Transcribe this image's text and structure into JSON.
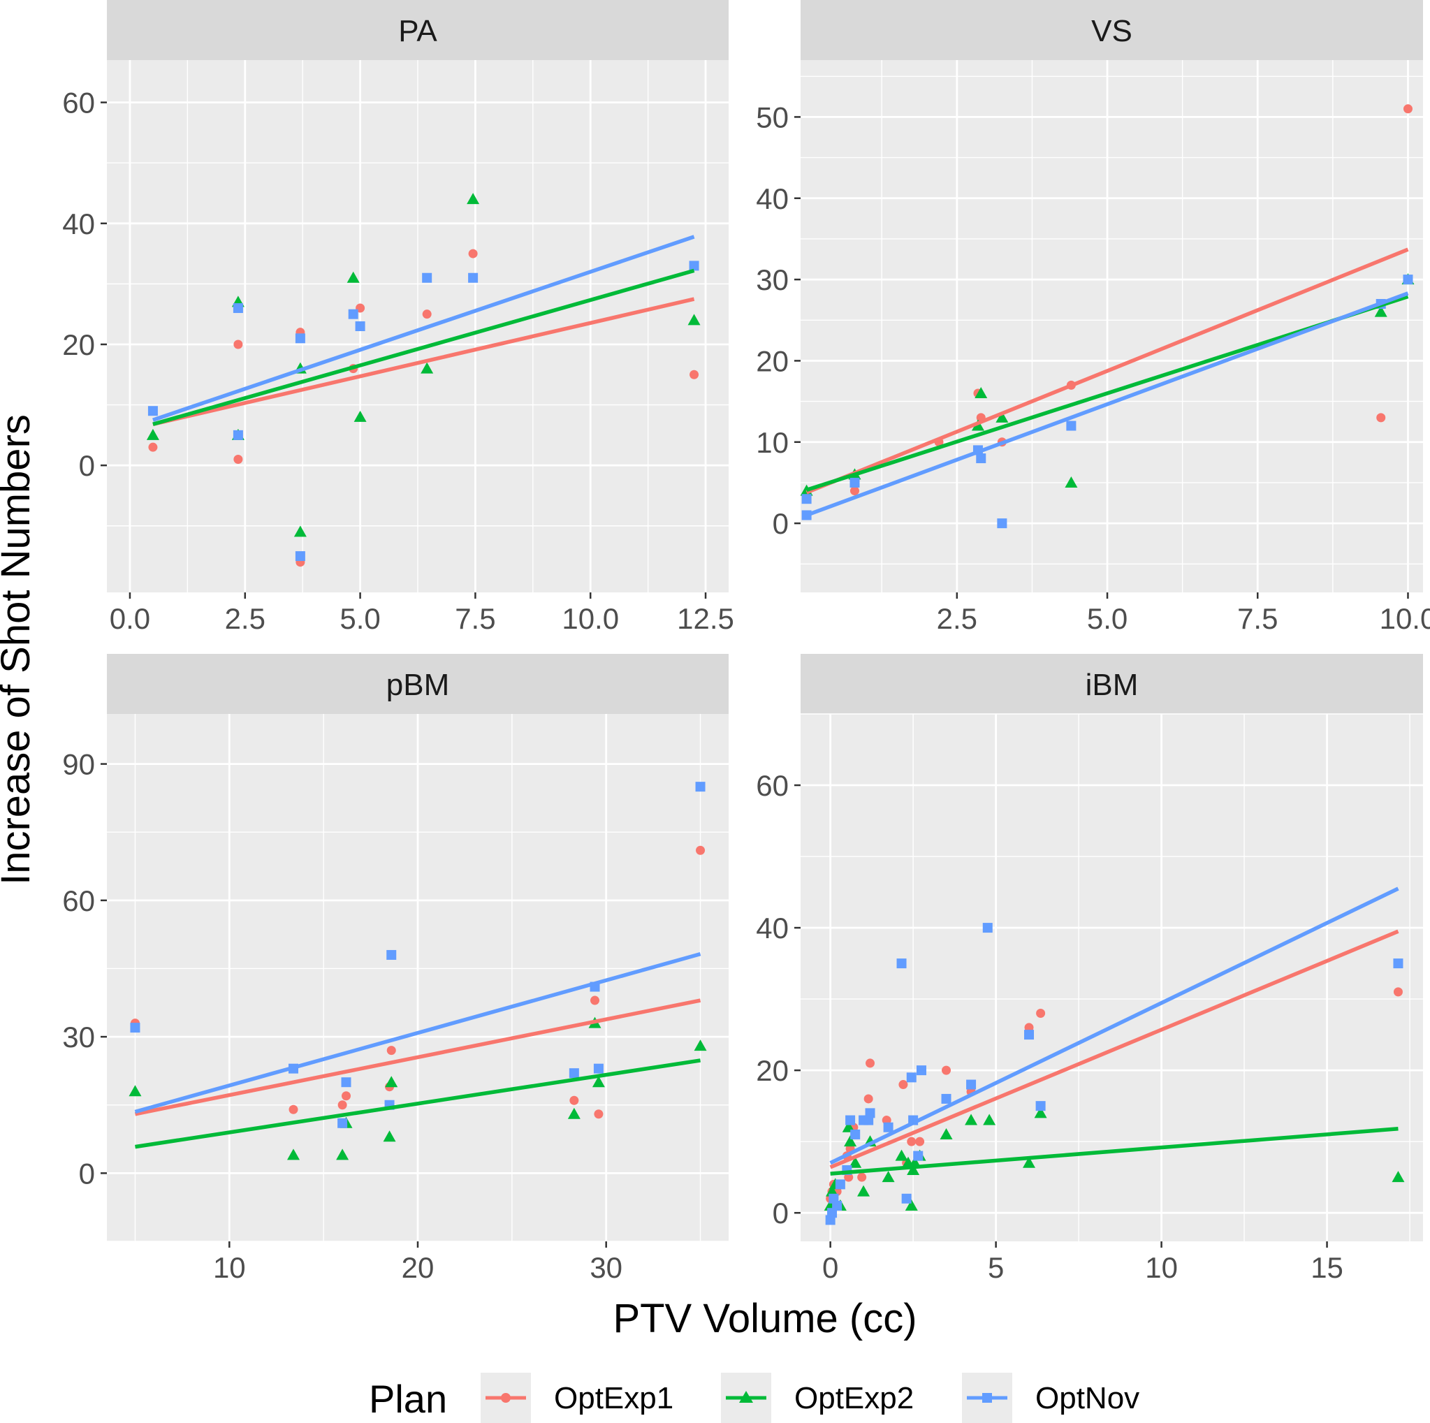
{
  "colors": {
    "OptExp1": "#F8766D",
    "OptExp2": "#00BA38",
    "OptNov": "#619CFF",
    "panel_bg": "#EBEBEB",
    "strip_bg": "#D9D9D9",
    "grid": "#FFFFFF",
    "text": "#1A1A1A",
    "tick_text": "#4D4D4D"
  },
  "chart_data": {
    "type": "scatter",
    "xlabel": "PTV Volume (cc)",
    "ylabel": "Increase of Shot Numbers",
    "legend": {
      "title": "Plan",
      "position": "bottom",
      "entries": [
        {
          "name": "OptExp1",
          "shape": "circle"
        },
        {
          "name": "OptExp2",
          "shape": "triangle"
        },
        {
          "name": "OptNov",
          "shape": "square"
        }
      ]
    },
    "panels": [
      {
        "title": "PA",
        "xlim": [
          -0.5,
          13.0
        ],
        "ylim": [
          -21,
          67
        ],
        "xticks": [
          0.0,
          2.5,
          5.0,
          7.5,
          10.0,
          12.5
        ],
        "xticklabels": [
          "0.0",
          "2.5",
          "5.0",
          "7.5",
          "10.0",
          "12.5"
        ],
        "yticks": [
          0,
          20,
          40,
          60
        ],
        "yticklabels": [
          "0",
          "20",
          "40",
          "60"
        ],
        "series": [
          {
            "name": "OptExp1",
            "x": [
              0.5,
              2.35,
              2.35,
              3.7,
              3.7,
              4.85,
              5.0,
              6.45,
              7.45,
              12.25
            ],
            "y": [
              3,
              20,
              1,
              22,
              -16,
              16,
              26,
              25,
              35,
              15
            ],
            "fit": [
              [
                0.5,
                6.8
              ],
              [
                12.25,
                27.5
              ]
            ]
          },
          {
            "name": "OptExp2",
            "x": [
              0.5,
              2.35,
              2.35,
              3.7,
              3.7,
              4.85,
              5.0,
              6.45,
              7.45,
              12.25
            ],
            "y": [
              5,
              27,
              5,
              16,
              -11,
              31,
              8,
              16,
              44,
              24
            ],
            "fit": [
              [
                0.5,
                6.8
              ],
              [
                12.25,
                32.2
              ]
            ]
          },
          {
            "name": "OptNov",
            "x": [
              0.5,
              2.35,
              2.35,
              3.7,
              3.7,
              4.85,
              5.0,
              6.45,
              7.45,
              12.25
            ],
            "y": [
              9,
              26,
              5,
              21,
              -15,
              25,
              23,
              31,
              31,
              33
            ],
            "fit": [
              [
                0.5,
                7.5
              ],
              [
                12.25,
                37.8
              ]
            ]
          }
        ]
      },
      {
        "title": "VS",
        "xlim": [
          -0.1,
          10.25
        ],
        "ylim": [
          -8.5,
          57
        ],
        "xticks": [
          2.5,
          5.0,
          7.5,
          10.0
        ],
        "xticklabels": [
          "2.5",
          "5.0",
          "7.5",
          "10.0"
        ],
        "yticks": [
          0,
          10,
          20,
          30,
          40,
          50
        ],
        "yticklabels": [
          "0",
          "10",
          "20",
          "30",
          "40",
          "50"
        ],
        "series": [
          {
            "name": "OptExp1",
            "x": [
              0.0,
              0.8,
              2.2,
              2.85,
              2.9,
              3.25,
              4.4,
              9.55,
              10.0
            ],
            "y": [
              3,
              4,
              10,
              16,
              13,
              10,
              17,
              13,
              51
            ],
            "fit": [
              [
                0.0,
                3.8
              ],
              [
                10.0,
                33.7
              ]
            ]
          },
          {
            "name": "OptExp2",
            "x": [
              0.0,
              0.8,
              2.85,
              2.9,
              3.25,
              4.4,
              9.55,
              10.0
            ],
            "y": [
              4,
              6,
              12,
              16,
              13,
              5,
              26,
              30
            ],
            "fit": [
              [
                0.0,
                4.1
              ],
              [
                10.0,
                27.9
              ]
            ]
          },
          {
            "name": "OptNov",
            "x": [
              0.0,
              0.0,
              0.8,
              2.85,
              2.9,
              3.25,
              4.4,
              9.55,
              10.0
            ],
            "y": [
              1,
              3,
              5,
              9,
              8,
              0,
              12,
              27,
              30
            ],
            "fit": [
              [
                0.0,
                1.0
              ],
              [
                10.0,
                28.3
              ]
            ]
          }
        ]
      },
      {
        "title": "pBM",
        "xlim": [
          3.5,
          36.5
        ],
        "ylim": [
          -15,
          101
        ],
        "xticks": [
          10,
          20,
          30
        ],
        "xticklabels": [
          "10",
          "20",
          "30"
        ],
        "yticks": [
          0,
          30,
          60,
          90
        ],
        "yticklabels": [
          "0",
          "30",
          "60",
          "90"
        ],
        "series": [
          {
            "name": "OptExp1",
            "x": [
              5.0,
              13.4,
              16.0,
              16.2,
              18.5,
              18.6,
              28.3,
              29.4,
              29.6,
              35.0
            ],
            "y": [
              33,
              14,
              15,
              17,
              19,
              27,
              16,
              38,
              13,
              71
            ],
            "fit": [
              [
                5.0,
                13.0
              ],
              [
                35.0,
                38.0
              ]
            ]
          },
          {
            "name": "OptExp2",
            "x": [
              5.0,
              13.4,
              16.0,
              16.2,
              18.5,
              18.6,
              28.3,
              29.4,
              29.6,
              35.0
            ],
            "y": [
              18,
              4,
              4,
              11,
              8,
              20,
              13,
              33,
              20,
              28
            ],
            "fit": [
              [
                5.0,
                5.8
              ],
              [
                35.0,
                24.8
              ]
            ]
          },
          {
            "name": "OptNov",
            "x": [
              5.0,
              13.4,
              16.0,
              16.2,
              18.5,
              18.6,
              28.3,
              29.4,
              29.6,
              35.0
            ],
            "y": [
              32,
              23,
              11,
              20,
              15,
              48,
              22,
              41,
              23,
              85
            ],
            "fit": [
              [
                5.0,
                13.5
              ],
              [
                35.0,
                48.2
              ]
            ]
          }
        ]
      },
      {
        "title": "iBM",
        "xlim": [
          -0.9,
          17.9
        ],
        "ylim": [
          -4,
          70
        ],
        "xticks": [
          0,
          5,
          10,
          15
        ],
        "xticklabels": [
          "0",
          "5",
          "10",
          "15"
        ],
        "yticks": [
          0,
          20,
          40,
          60
        ],
        "yticklabels": [
          "0",
          "20",
          "40",
          "60"
        ],
        "series": [
          {
            "name": "OptExp1",
            "x": [
              0.0,
              0.05,
              0.1,
              0.15,
              0.2,
              0.3,
              0.5,
              0.55,
              0.6,
              0.7,
              0.95,
              1.15,
              1.2,
              1.7,
              2.2,
              2.3,
              2.45,
              2.7,
              3.5,
              4.25,
              6.0,
              6.35,
              17.15
            ],
            "y": [
              2,
              3,
              4,
              1,
              3,
              4,
              8,
              5,
              9,
              12,
              5,
              16,
              21,
              13,
              18,
              7,
              10,
              10,
              20,
              17,
              26,
              28,
              31
            ],
            "fit": [
              [
                0.0,
                6.4
              ],
              [
                17.15,
                39.5
              ]
            ]
          },
          {
            "name": "OptExp2",
            "x": [
              0.0,
              0.05,
              0.15,
              0.3,
              0.55,
              0.6,
              0.75,
              1.0,
              1.2,
              1.75,
              2.15,
              2.35,
              2.45,
              2.5,
              2.55,
              2.7,
              3.5,
              4.25,
              4.8,
              6.0,
              6.35,
              17.15
            ],
            "y": [
              1,
              3,
              4,
              1,
              12,
              10,
              7,
              3,
              10,
              5,
              8,
              7,
              1,
              6,
              7,
              8,
              11,
              13,
              13,
              7,
              14,
              5
            ],
            "fit": [
              [
                0.0,
                5.5
              ],
              [
                17.15,
                11.8
              ]
            ]
          },
          {
            "name": "OptNov",
            "x": [
              0.0,
              0.05,
              0.1,
              0.2,
              0.3,
              0.5,
              0.6,
              0.75,
              1.0,
              1.15,
              1.2,
              1.75,
              2.15,
              2.3,
              2.45,
              2.5,
              2.65,
              2.75,
              3.5,
              4.25,
              4.75,
              6.0,
              6.35,
              17.15
            ],
            "y": [
              -1,
              0,
              2,
              1,
              4,
              6,
              13,
              11,
              13,
              13,
              14,
              12,
              35,
              2,
              19,
              13,
              8,
              20,
              16,
              18,
              40,
              25,
              15,
              35
            ],
            "fit": [
              [
                0.0,
                7.0
              ],
              [
                17.15,
                45.5
              ]
            ]
          }
        ]
      }
    ]
  }
}
